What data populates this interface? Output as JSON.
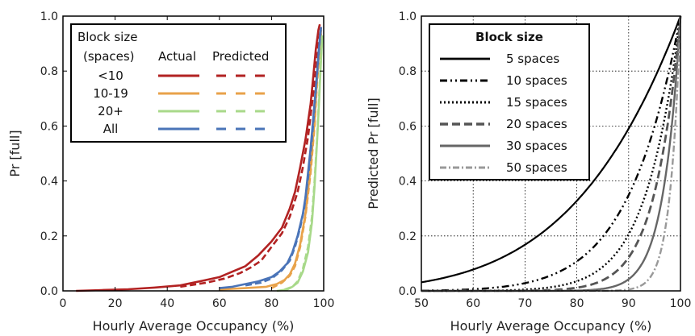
{
  "chart_data": [
    {
      "type": "line",
      "xlabel": "Hourly Average Occupancy (%)",
      "ylabel": "Pr [full]",
      "xlim": [
        0,
        100
      ],
      "ylim": [
        0,
        1.0
      ],
      "xticks": [
        "0",
        "20",
        "40",
        "60",
        "80",
        "100"
      ],
      "yticks": [
        "0.0",
        "0.2",
        "0.4",
        "0.6",
        "0.8",
        "1.0"
      ],
      "grid": false,
      "legend": {
        "placement": "top-left",
        "header": [
          "Block size",
          "(spaces)"
        ],
        "col_actual": "Actual",
        "col_predicted": "Predicted",
        "rows": [
          "<10",
          "10-19",
          "20+",
          "All"
        ]
      },
      "series": [
        {
          "name": "<10",
          "color": "#b22222",
          "actual": [
            [
              5,
              0.0
            ],
            [
              15,
              0.003
            ],
            [
              25,
              0.006
            ],
            [
              35,
              0.012
            ],
            [
              45,
              0.02
            ],
            [
              50,
              0.03
            ],
            [
              55,
              0.04
            ],
            [
              60,
              0.05
            ],
            [
              65,
              0.07
            ],
            [
              70,
              0.09
            ],
            [
              75,
              0.13
            ],
            [
              80,
              0.18
            ],
            [
              84,
              0.23
            ],
            [
              87,
              0.3
            ],
            [
              89,
              0.36
            ],
            [
              91,
              0.45
            ],
            [
              93,
              0.55
            ],
            [
              95,
              0.68
            ],
            [
              96,
              0.78
            ],
            [
              97,
              0.88
            ],
            [
              98,
              0.95
            ],
            [
              98.5,
              0.97
            ]
          ],
          "predicted": [
            [
              45,
              0.015
            ],
            [
              55,
              0.03
            ],
            [
              62,
              0.045
            ],
            [
              68,
              0.065
            ],
            [
              72,
              0.085
            ],
            [
              76,
              0.11
            ],
            [
              80,
              0.16
            ],
            [
              84,
              0.21
            ],
            [
              87,
              0.27
            ],
            [
              90,
              0.36
            ],
            [
              92,
              0.45
            ],
            [
              94,
              0.56
            ],
            [
              95.5,
              0.68
            ],
            [
              97,
              0.8
            ],
            [
              98,
              0.9
            ],
            [
              99,
              0.96
            ]
          ]
        },
        {
          "name": "10-19",
          "color": "#e8a24a",
          "actual": [
            [
              60,
              0.005
            ],
            [
              70,
              0.01
            ],
            [
              78,
              0.015
            ],
            [
              82,
              0.025
            ],
            [
              85,
              0.04
            ],
            [
              87,
              0.06
            ],
            [
              89,
              0.1
            ],
            [
              91,
              0.17
            ],
            [
              93,
              0.28
            ],
            [
              95,
              0.45
            ],
            [
              96.5,
              0.62
            ],
            [
              97.5,
              0.78
            ],
            [
              98.5,
              0.9
            ],
            [
              99,
              0.95
            ]
          ],
          "predicted": [
            [
              80,
              0.01
            ],
            [
              84,
              0.03
            ],
            [
              87,
              0.055
            ],
            [
              89,
              0.09
            ],
            [
              91,
              0.16
            ],
            [
              93,
              0.27
            ],
            [
              95,
              0.43
            ],
            [
              96.5,
              0.6
            ],
            [
              97.5,
              0.76
            ],
            [
              98.5,
              0.88
            ],
            [
              99,
              0.94
            ]
          ]
        },
        {
          "name": "20+",
          "color": "#a8d98a",
          "actual": [
            [
              82,
              0.0
            ],
            [
              86,
              0.005
            ],
            [
              88,
              0.015
            ],
            [
              90,
              0.03
            ],
            [
              92,
              0.07
            ],
            [
              94,
              0.14
            ],
            [
              95.5,
              0.25
            ],
            [
              96.5,
              0.38
            ],
            [
              97.5,
              0.55
            ],
            [
              98.3,
              0.7
            ],
            [
              99,
              0.85
            ],
            [
              99.5,
              0.93
            ]
          ],
          "predicted": [
            [
              85,
              0.005
            ],
            [
              88,
              0.015
            ],
            [
              90,
              0.035
            ],
            [
              92,
              0.08
            ],
            [
              94,
              0.16
            ],
            [
              95.5,
              0.27
            ],
            [
              96.5,
              0.4
            ],
            [
              97.5,
              0.56
            ],
            [
              98.3,
              0.72
            ],
            [
              99,
              0.86
            ],
            [
              99.5,
              0.93
            ]
          ]
        },
        {
          "name": "All",
          "color": "#4a74b8",
          "actual": [
            [
              60,
              0.01
            ],
            [
              65,
              0.015
            ],
            [
              70,
              0.025
            ],
            [
              75,
              0.035
            ],
            [
              80,
              0.05
            ],
            [
              83,
              0.07
            ],
            [
              86,
              0.1
            ],
            [
              88,
              0.14
            ],
            [
              90,
              0.2
            ],
            [
              92,
              0.28
            ],
            [
              93,
              0.34
            ],
            [
              94,
              0.43
            ],
            [
              95,
              0.52
            ],
            [
              96,
              0.63
            ],
            [
              97,
              0.74
            ],
            [
              98,
              0.86
            ],
            [
              98.6,
              0.93
            ],
            [
              99,
              0.96
            ]
          ],
          "predicted": [
            [
              70,
              0.02
            ],
            [
              76,
              0.03
            ],
            [
              80,
              0.045
            ],
            [
              84,
              0.075
            ],
            [
              87,
              0.11
            ],
            [
              89,
              0.16
            ],
            [
              91,
              0.23
            ],
            [
              92.5,
              0.3
            ],
            [
              94,
              0.41
            ],
            [
              95,
              0.5
            ],
            [
              96,
              0.61
            ],
            [
              97,
              0.73
            ],
            [
              98,
              0.85
            ],
            [
              98.6,
              0.92
            ],
            [
              99,
              0.96
            ]
          ]
        }
      ]
    },
    {
      "type": "line",
      "xlabel": "Hourly Average Occupancy (%)",
      "ylabel": "Predicted Pr [full]",
      "xlim": [
        50,
        100
      ],
      "ylim": [
        0,
        1.0
      ],
      "xticks": [
        "50",
        "60",
        "70",
        "80",
        "90",
        "100"
      ],
      "yticks": [
        "0.0",
        "0.2",
        "0.4",
        "0.6",
        "0.8",
        "1.0"
      ],
      "grid": true,
      "legend": {
        "placement": "top-left",
        "title": "Block size"
      },
      "series": [
        {
          "name": "5 spaces",
          "color": "#000000",
          "dash": "",
          "width": 2.2,
          "n": 5
        },
        {
          "name": "10 spaces",
          "color": "#000000",
          "dash": "9,4,2,4,2,4",
          "width": 2.4,
          "n": 10
        },
        {
          "name": "15 spaces",
          "color": "#000000",
          "dash": "2,3",
          "width": 2.4,
          "n": 15
        },
        {
          "name": "20 spaces",
          "color": "#555555",
          "dash": "10,5",
          "width": 2.8,
          "n": 20
        },
        {
          "name": "30 spaces",
          "color": "#666666",
          "dash": "",
          "width": 2.4,
          "n": 30
        },
        {
          "name": "50 spaces",
          "color": "#999999",
          "dash": "8,3,2,3",
          "width": 2.4,
          "n": 50
        }
      ]
    }
  ]
}
